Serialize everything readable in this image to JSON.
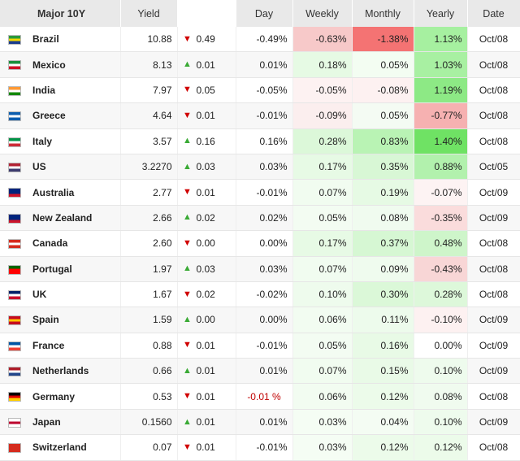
{
  "table": {
    "headers": {
      "country": "Major 10Y",
      "yield": "Yield",
      "day": "Day",
      "weekly": "Weekly",
      "monthly": "Monthly",
      "yearly": "Yearly",
      "date": "Date"
    },
    "rows": [
      {
        "country": "Brazil",
        "yield": "10.88",
        "dir": "down",
        "change": "0.49",
        "day": "-0.49%",
        "weekly": "-0.63%",
        "monthly": "-1.38%",
        "yearly": "1.13%",
        "date": "Oct/08",
        "flag": "brazil-flag-icon",
        "c": [
          "#2a9a3a",
          "#f5d800",
          "#1b3d8f"
        ],
        "bg": {
          "weekly": "#f7c9c9",
          "monthly": "#f47373",
          "yearly": "#a6f0a0"
        }
      },
      {
        "country": "Mexico",
        "yield": "8.13",
        "dir": "up",
        "change": "0.01",
        "day": "0.01%",
        "weekly": "0.18%",
        "monthly": "0.05%",
        "yearly": "1.03%",
        "date": "Oct/08",
        "flag": "mexico-flag-icon",
        "c": [
          "#1a8f3c",
          "#ffffff",
          "#ce1126"
        ],
        "bg": {
          "weekly": "#e6fae4",
          "monthly": "#f3fdf2",
          "yearly": "#a8f0a2"
        }
      },
      {
        "country": "India",
        "yield": "7.97",
        "dir": "down",
        "change": "0.05",
        "day": "-0.05%",
        "weekly": "-0.05%",
        "monthly": "-0.08%",
        "yearly": "1.19%",
        "date": "Oct/08",
        "flag": "india-flag-icon",
        "c": [
          "#ff9933",
          "#ffffff",
          "#138808"
        ],
        "bg": {
          "weekly": "#fdf2f2",
          "monthly": "#fdf1f1",
          "yearly": "#8de985"
        }
      },
      {
        "country": "Greece",
        "yield": "4.64",
        "dir": "down",
        "change": "0.01",
        "day": "-0.01%",
        "weekly": "-0.09%",
        "monthly": "0.05%",
        "yearly": "-0.77%",
        "date": "Oct/08",
        "flag": "greece-flag-icon",
        "c": [
          "#0d5eaf",
          "#ffffff",
          "#0d5eaf"
        ],
        "bg": {
          "weekly": "#fbeeee",
          "monthly": "#f4fbf3",
          "yearly": "#f6b1b1"
        }
      },
      {
        "country": "Italy",
        "yield": "3.57",
        "dir": "up",
        "change": "0.16",
        "day": "0.16%",
        "weekly": "0.28%",
        "monthly": "0.83%",
        "yearly": "1.40%",
        "date": "Oct/08",
        "flag": "italy-flag-icon",
        "c": [
          "#009246",
          "#ffffff",
          "#ce2b37"
        ],
        "bg": {
          "weekly": "#dcf8d9",
          "monthly": "#b9f3b4",
          "yearly": "#6fe264"
        }
      },
      {
        "country": "US",
        "yield": "3.2270",
        "dir": "up",
        "change": "0.03",
        "day": "0.03%",
        "weekly": "0.17%",
        "monthly": "0.35%",
        "yearly": "0.88%",
        "date": "Oct/05",
        "flag": "us-flag-icon",
        "c": [
          "#b22234",
          "#ffffff",
          "#3c3b6e"
        ],
        "bg": {
          "weekly": "#e7fae5",
          "monthly": "#d8f7d5",
          "yearly": "#b2f1ad"
        }
      },
      {
        "country": "Australia",
        "yield": "2.77",
        "dir": "down",
        "change": "0.01",
        "day": "-0.01%",
        "weekly": "0.07%",
        "monthly": "0.19%",
        "yearly": "-0.07%",
        "date": "Oct/09",
        "flag": "australia-flag-icon",
        "c": [
          "#00247d",
          "#00247d",
          "#cf142b"
        ],
        "bg": {
          "weekly": "#f1fcf0",
          "monthly": "#e6fae4",
          "yearly": "#fdf3f3"
        }
      },
      {
        "country": "New Zealand",
        "yield": "2.66",
        "dir": "up",
        "change": "0.02",
        "day": "0.02%",
        "weekly": "0.05%",
        "monthly": "0.08%",
        "yearly": "-0.35%",
        "date": "Oct/09",
        "flag": "new-zealand-flag-icon",
        "c": [
          "#00247d",
          "#00247d",
          "#cc142b"
        ],
        "bg": {
          "weekly": "#f3fcf2",
          "monthly": "#f0fbef",
          "yearly": "#fadcdc"
        }
      },
      {
        "country": "Canada",
        "yield": "2.60",
        "dir": "down",
        "change": "0.00",
        "day": "0.00%",
        "weekly": "0.17%",
        "monthly": "0.37%",
        "yearly": "0.48%",
        "date": "Oct/08",
        "flag": "canada-flag-icon",
        "c": [
          "#d52b1e",
          "#ffffff",
          "#d52b1e"
        ],
        "bg": {
          "weekly": "#e7fae5",
          "monthly": "#d6f7d3",
          "yearly": "#cef5ca"
        }
      },
      {
        "country": "Portugal",
        "yield": "1.97",
        "dir": "up",
        "change": "0.03",
        "day": "0.03%",
        "weekly": "0.07%",
        "monthly": "0.09%",
        "yearly": "-0.43%",
        "date": "Oct/08",
        "flag": "portugal-flag-icon",
        "c": [
          "#006600",
          "#ff0000",
          "#ff0000"
        ],
        "bg": {
          "weekly": "#f1fcf0",
          "monthly": "#effbee",
          "yearly": "#f8d6d6"
        }
      },
      {
        "country": "UK",
        "yield": "1.67",
        "dir": "down",
        "change": "0.02",
        "day": "-0.02%",
        "weekly": "0.10%",
        "monthly": "0.30%",
        "yearly": "0.28%",
        "date": "Oct/08",
        "flag": "uk-flag-icon",
        "c": [
          "#012169",
          "#ffffff",
          "#c8102e"
        ],
        "bg": {
          "weekly": "#eefbed",
          "monthly": "#dbf8d8",
          "yearly": "#ddf8da"
        }
      },
      {
        "country": "Spain",
        "yield": "1.59",
        "dir": "up",
        "change": "0.00",
        "day": "0.00%",
        "weekly": "0.06%",
        "monthly": "0.11%",
        "yearly": "-0.10%",
        "date": "Oct/09",
        "flag": "spain-flag-icon",
        "c": [
          "#c60b1e",
          "#ffc400",
          "#c60b1e"
        ],
        "bg": {
          "weekly": "#f2fcf1",
          "monthly": "#edfbec",
          "yearly": "#fdf1f1"
        }
      },
      {
        "country": "France",
        "yield": "0.88",
        "dir": "down",
        "change": "0.01",
        "day": "-0.01%",
        "weekly": "0.05%",
        "monthly": "0.16%",
        "yearly": "0.00%",
        "date": "Oct/09",
        "flag": "france-flag-icon",
        "c": [
          "#0055a4",
          "#ffffff",
          "#ef4135"
        ],
        "bg": {
          "weekly": "#f3fcf2",
          "monthly": "#e8fae6",
          "yearly": ""
        }
      },
      {
        "country": "Netherlands",
        "yield": "0.66",
        "dir": "up",
        "change": "0.01",
        "day": "0.01%",
        "weekly": "0.07%",
        "monthly": "0.15%",
        "yearly": "0.10%",
        "date": "Oct/09",
        "flag": "netherlands-flag-icon",
        "c": [
          "#ae1c28",
          "#ffffff",
          "#21468b"
        ],
        "bg": {
          "weekly": "#f1fcf0",
          "monthly": "#e9fae7",
          "yearly": "#eefbed"
        }
      },
      {
        "country": "Germany",
        "yield": "0.53",
        "dir": "down",
        "change": "0.01",
        "day": "-0.01 %",
        "dayRed": true,
        "weekly": "0.06%",
        "monthly": "0.12%",
        "yearly": "0.08%",
        "date": "Oct/08",
        "flag": "germany-flag-icon",
        "c": [
          "#000000",
          "#dd0000",
          "#ffce00"
        ],
        "bg": {
          "weekly": "#f2fcf1",
          "monthly": "#ecfbea",
          "yearly": "#f0fbef"
        }
      },
      {
        "country": "Japan",
        "yield": "0.1560",
        "dir": "up",
        "change": "0.01",
        "day": "0.01%",
        "weekly": "0.03%",
        "monthly": "0.04%",
        "yearly": "0.10%",
        "date": "Oct/09",
        "flag": "japan-flag-icon",
        "c": [
          "#ffffff",
          "#bc002d",
          "#ffffff"
        ],
        "bg": {
          "weekly": "#f5fdf4",
          "monthly": "#f4fcf3",
          "yearly": "#eefbed"
        }
      },
      {
        "country": "Switzerland",
        "yield": "0.07",
        "dir": "down",
        "change": "0.01",
        "day": "-0.01%",
        "weekly": "0.03%",
        "monthly": "0.12%",
        "yearly": "0.12%",
        "date": "Oct/08",
        "flag": "switzerland-flag-icon",
        "c": [
          "#d52b1e",
          "#d52b1e",
          "#d52b1e"
        ],
        "bg": {
          "weekly": "#f5fdf4",
          "monthly": "#ecfbea",
          "yearly": "#ecfbea"
        }
      }
    ]
  }
}
